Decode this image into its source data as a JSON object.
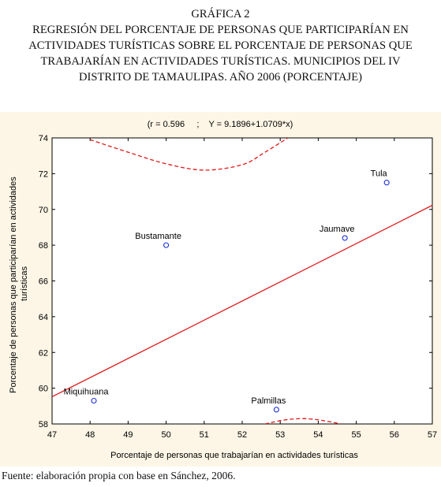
{
  "figure_label": "GRÁFICA 2",
  "title_lines": [
    "REGRESIÓN DEL PORCENTAJE DE PERSONAS QUE PARTICIPARÍAN EN",
    "ACTIVIDADES TURÍSTICAS SOBRE EL PORCENTAJE DE PERSONAS QUE",
    "TRABAJARÍAN EN ACTIVIDADES TURÍSTICAS. MUNICIPIOS DEL IV",
    "DISTRITO DE TAMAULIPAS. AÑO 2006 (PORCENTAJE)"
  ],
  "source": "Fuente: elaboración propia con base en Sánchez, 2006.",
  "colors": {
    "panel_bg": "#fdf6e6",
    "regression_line": "#e01818",
    "confidence_band": "#e01818",
    "points": "#1a2fd6"
  },
  "chart_data": {
    "type": "scatter",
    "subtitle": "(r = 0.596     ;    Y = 9.1896+1.0709*x)",
    "xlabel": "Porcentaje de personas que trabajarían en actividades turísticas",
    "ylabel": "Porcentaje de personas que participarían en actividades turísticas",
    "xlim": [
      47,
      57
    ],
    "ylim": [
      58,
      74
    ],
    "xticks": [
      47,
      48,
      49,
      50,
      51,
      52,
      53,
      54,
      55,
      56,
      57
    ],
    "yticks": [
      58,
      60,
      62,
      64,
      66,
      68,
      70,
      72,
      74
    ],
    "grid": false,
    "points": [
      {
        "label": "Tula",
        "x": 55.8,
        "y": 71.5
      },
      {
        "label": "Jaumave",
        "x": 54.7,
        "y": 68.4
      },
      {
        "label": "Bustamante",
        "x": 50.0,
        "y": 68.0
      },
      {
        "label": "Miquihuana",
        "x": 48.1,
        "y": 59.3
      },
      {
        "label": "Palmillas",
        "x": 52.9,
        "y": 58.8
      }
    ],
    "regression": {
      "intercept": 9.1896,
      "slope": 1.0709
    },
    "confidence_band_upper": [
      {
        "x": 48.0,
        "y": 73.9
      },
      {
        "x": 49.0,
        "y": 73.2
      },
      {
        "x": 50.0,
        "y": 72.55
      },
      {
        "x": 51.0,
        "y": 72.2
      },
      {
        "x": 52.0,
        "y": 72.5
      },
      {
        "x": 52.6,
        "y": 73.2
      },
      {
        "x": 53.2,
        "y": 74.0
      }
    ],
    "confidence_band_lower": [
      {
        "x": 52.6,
        "y": 58.0
      },
      {
        "x": 53.1,
        "y": 58.22
      },
      {
        "x": 53.6,
        "y": 58.3
      },
      {
        "x": 54.1,
        "y": 58.2
      },
      {
        "x": 54.6,
        "y": 58.0
      }
    ]
  }
}
